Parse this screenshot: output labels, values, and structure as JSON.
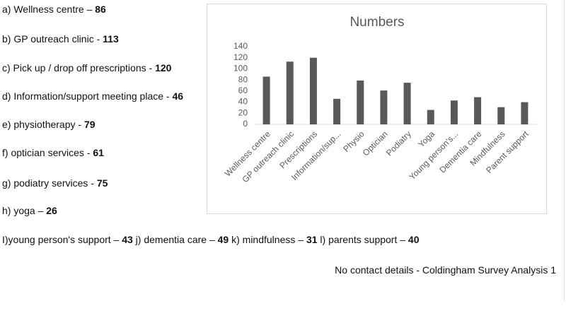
{
  "list": [
    {
      "items": [
        {
          "text": "a) Wellness centre – ",
          "value": 86
        }
      ]
    },
    {
      "items": [
        {
          "text": "b) GP outreach clinic - ",
          "value": 113
        }
      ]
    },
    {
      "items": [
        {
          "text": "c) Pick up / drop off prescriptions - ",
          "value": 120
        }
      ]
    },
    {
      "items": [
        {
          "text": "d) Information/support meeting place - ",
          "value": 46
        }
      ]
    },
    {
      "items": [
        {
          "text": "e) physiotherapy - ",
          "value": 79
        }
      ]
    },
    {
      "items": [
        {
          "text": "f) optician services - ",
          "value": 61
        }
      ]
    },
    {
      "items": [
        {
          "text": "g) podiatry services - ",
          "value": 75
        }
      ]
    },
    {
      "items": [
        {
          "text": "h) yoga – ",
          "value": 26
        }
      ]
    },
    {
      "items": [
        {
          "text": "I)young person's support – ",
          "value": 43
        },
        {
          "text": " j) dementia care – ",
          "value": 49
        },
        {
          "text": " k) mindfulness – ",
          "value": 31
        },
        {
          "text": " l) parents support – ",
          "value": 40
        }
      ]
    }
  ],
  "footer": "No contact details - Coldingham Survey Analysis 1",
  "chart_data": {
    "type": "bar",
    "title": "Numbers",
    "categories": [
      "Wellness centre",
      "GP outreach clinic",
      "Prescriptions",
      "Information/sup...",
      "Physio",
      "Optician",
      "Podiatry",
      "Yoga",
      "Young person's...",
      "Dementia care",
      "Mindfulness",
      "Parent support"
    ],
    "values": [
      86,
      113,
      120,
      46,
      79,
      61,
      75,
      26,
      43,
      49,
      31,
      40
    ],
    "color": "#595959",
    "ylim": [
      0,
      140
    ],
    "yticks": [
      0,
      20,
      40,
      60,
      80,
      100,
      120,
      140
    ],
    "grid": false
  }
}
